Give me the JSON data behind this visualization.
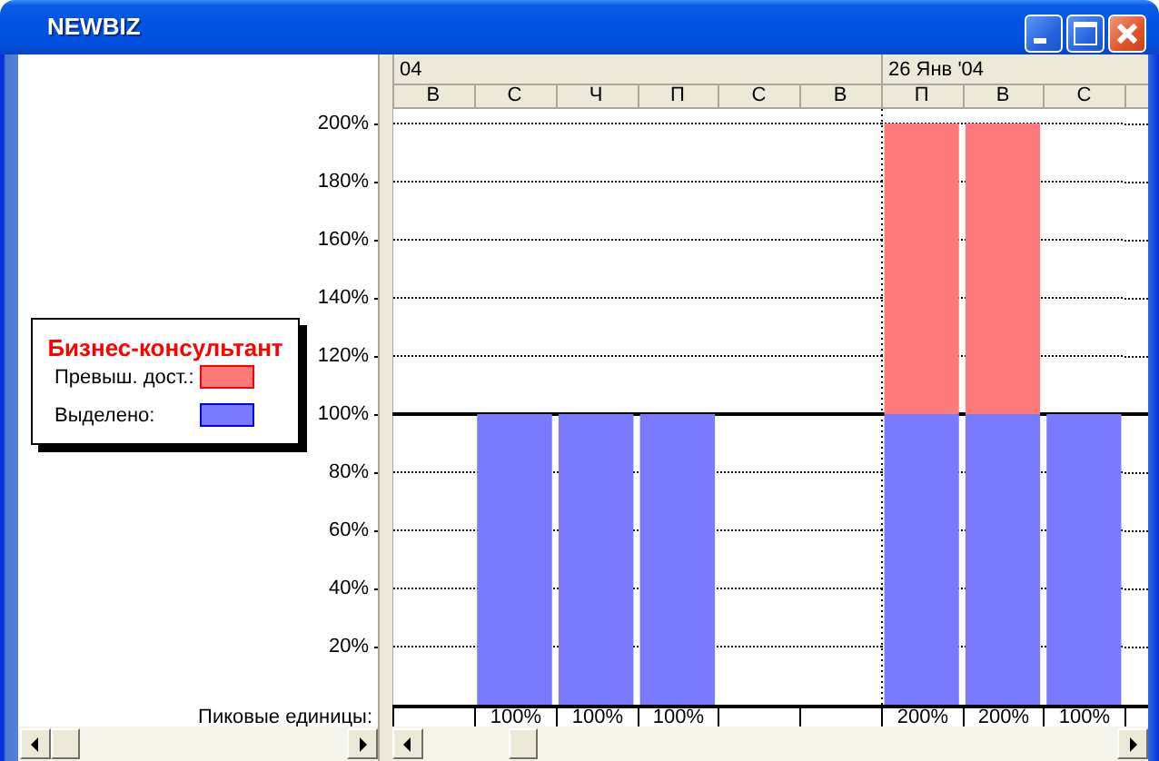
{
  "chart_data": [
    {
      "type": "bar",
      "xlabel": "04",
      "legend_title": "Бизнес-консультант",
      "categories": [
        "В",
        "С",
        "Ч",
        "П",
        "С",
        "В"
      ],
      "series": [
        {
          "name": "Выделено:",
          "color": "#7a7aff",
          "values": [
            null,
            100,
            100,
            100,
            null,
            null
          ]
        },
        {
          "name": "Превыш. дост.:",
          "color": "#ff7a7a",
          "values": [
            null,
            null,
            null,
            null,
            null,
            null
          ]
        }
      ],
      "stacked": true,
      "ylim": [
        0,
        205
      ],
      "yticks": [
        {
          "value": 20,
          "label": "20%"
        },
        {
          "value": 40,
          "label": "40%"
        },
        {
          "value": 60,
          "label": "60%"
        },
        {
          "value": 80,
          "label": "80%"
        },
        {
          "value": 100,
          "label": "100%"
        },
        {
          "value": 120,
          "label": "120%"
        },
        {
          "value": 140,
          "label": "140%"
        },
        {
          "value": 160,
          "label": "160%"
        },
        {
          "value": 180,
          "label": "180%"
        },
        {
          "value": 200,
          "label": "200%"
        }
      ],
      "grid": "y",
      "legend": "left",
      "totals": [
        null,
        "100%",
        "100%",
        "100%",
        null,
        null
      ],
      "ref_lines": [
        {
          "axis": "y",
          "value": 100,
          "color": "#000000",
          "line_style": "solid"
        }
      ],
      "annotations": [
        "NEWBIZ",
        "Пиковые единицы:"
      ]
    },
    {
      "type": "bar",
      "xlabel": "26 Янв '04",
      "categories": [
        "П",
        "В",
        "С"
      ],
      "series": [
        {
          "color": "#7a7aff",
          "values": [
            100,
            100,
            100
          ]
        },
        {
          "color": "#ff7a7a",
          "values": [
            100,
            100,
            null
          ]
        }
      ],
      "stacked": true,
      "ylim": [
        0,
        205
      ],
      "yticks": [
        20,
        40,
        60,
        80,
        100,
        120,
        140,
        160,
        180,
        200
      ],
      "tick_labels": "x",
      "grid": "y",
      "totals": [
        "200%",
        "200%",
        "100%"
      ],
      "ref_lines": [
        {
          "axis": "y",
          "value": 100,
          "color": "#000000",
          "line_style": "solid"
        }
      ]
    }
  ]
}
